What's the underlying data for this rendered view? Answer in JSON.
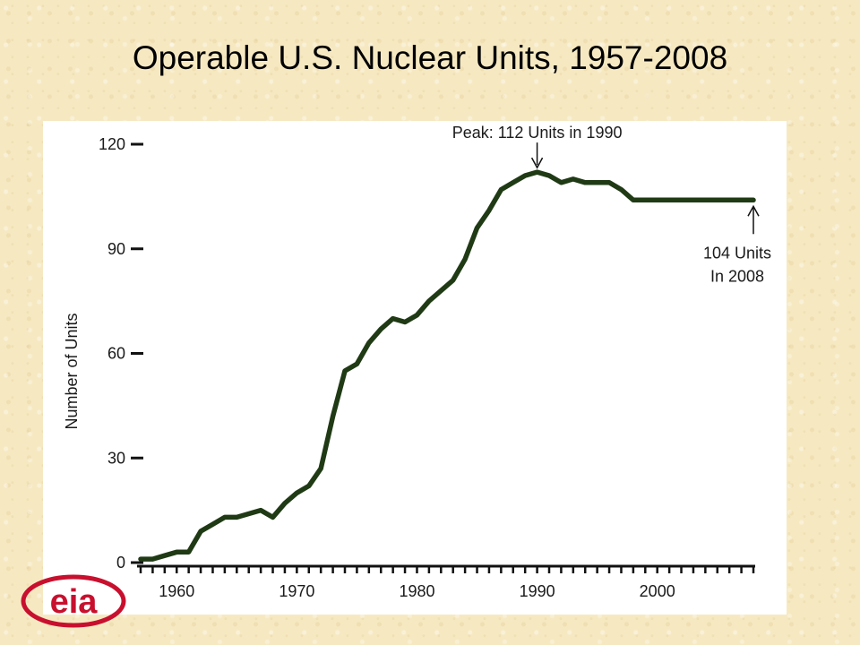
{
  "slide": {
    "title": "Operable U.S. Nuclear Units, 1957-2008",
    "background_color": "#f6e9c2",
    "logo_text": "eia",
    "logo_color": "#c8102e"
  },
  "chart_data": {
    "type": "line",
    "title": "",
    "xlabel": "",
    "ylabel": "Number of Units",
    "xlim": [
      1957,
      2008
    ],
    "ylim": [
      0,
      120
    ],
    "yticks": [
      0,
      30,
      60,
      90,
      120
    ],
    "xtick_labels": [
      1960,
      1970,
      1980,
      1990,
      2000
    ],
    "grid": false,
    "line_color": "#1f3a14",
    "x": [
      1957,
      1958,
      1959,
      1960,
      1961,
      1962,
      1963,
      1964,
      1965,
      1966,
      1967,
      1968,
      1969,
      1970,
      1971,
      1972,
      1973,
      1974,
      1975,
      1976,
      1977,
      1978,
      1979,
      1980,
      1981,
      1982,
      1983,
      1984,
      1985,
      1986,
      1987,
      1988,
      1989,
      1990,
      1991,
      1992,
      1993,
      1994,
      1995,
      1996,
      1997,
      1998,
      1999,
      2000,
      2001,
      2002,
      2003,
      2004,
      2005,
      2006,
      2007,
      2008
    ],
    "series": [
      {
        "values": [
          1,
          1,
          2,
          3,
          3,
          9,
          11,
          13,
          13,
          14,
          15,
          13,
          17,
          20,
          22,
          27,
          42,
          55,
          57,
          63,
          67,
          70,
          69,
          71,
          75,
          78,
          81,
          87,
          96,
          101,
          107,
          109,
          111,
          112,
          111,
          109,
          110,
          109,
          109,
          109,
          107,
          104,
          104,
          104,
          104,
          104,
          104,
          104,
          104,
          104,
          104,
          104
        ]
      }
    ],
    "annotations": [
      {
        "text": "Peak:  112 Units in 1990",
        "x": 1990,
        "y": 112
      },
      {
        "text_lines": [
          "104 Units",
          "In 2008"
        ],
        "x": 2008,
        "y": 104
      }
    ]
  }
}
